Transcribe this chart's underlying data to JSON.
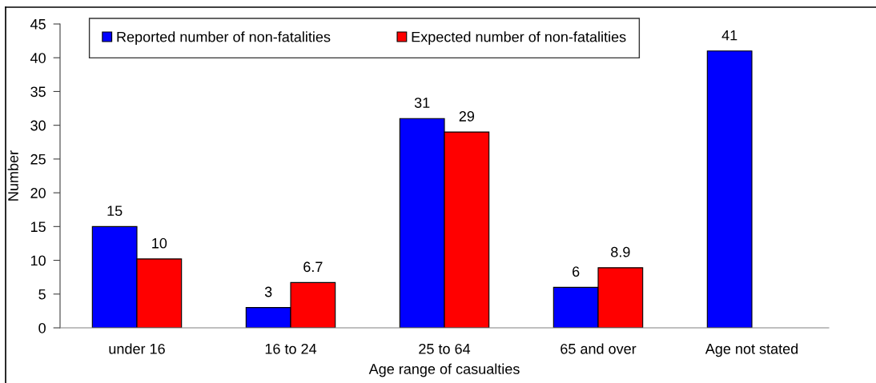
{
  "chart_data": {
    "type": "bar",
    "xlabel": "Age range of casualties",
    "ylabel": "Number",
    "categories": [
      "under 16",
      "16 to 24",
      "25 to 64",
      "65 and over",
      "Age not stated"
    ],
    "series": [
      {
        "name": "Reported number of non-fatalities",
        "color": "#0000ff",
        "values": [
          15,
          3,
          31,
          6,
          41
        ],
        "value_labels": [
          "15",
          "3",
          "31",
          "6",
          "41"
        ]
      },
      {
        "name": "Expected number of non-fatalities",
        "color": "#ff0000",
        "values": [
          10.2,
          6.7,
          29,
          8.9,
          null
        ],
        "value_labels": [
          "10",
          "6.7",
          "29",
          "8.9",
          null
        ]
      }
    ],
    "ylim": [
      0,
      45
    ],
    "yticks": [
      0,
      5,
      10,
      15,
      20,
      25,
      30,
      35,
      40,
      45
    ],
    "grid": false,
    "legend": "top"
  }
}
